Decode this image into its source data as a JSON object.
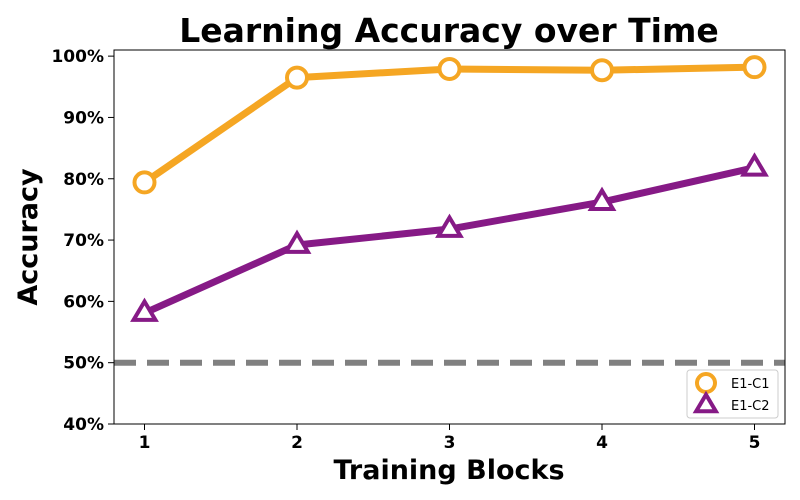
{
  "chart_data": {
    "type": "line",
    "title": "Learning Accuracy over Time",
    "xlabel": "Training Blocks",
    "ylabel": "Accuracy",
    "x": [
      1,
      2,
      3,
      4,
      5
    ],
    "x_tick_labels": [
      "1",
      "2",
      "3",
      "4",
      "5"
    ],
    "xlim": [
      0.8,
      5.2
    ],
    "ylim": [
      0.4,
      1.01
    ],
    "y_ticks": [
      0.4,
      0.5,
      0.6,
      0.7,
      0.8,
      0.9,
      1.0
    ],
    "y_tick_labels": [
      "40%",
      "50%",
      "60%",
      "70%",
      "80%",
      "90%",
      "100%"
    ],
    "grid": false,
    "legend_position": "bottom-right",
    "reference_line": {
      "y": 0.5,
      "style": "dashed",
      "color": "#808080"
    },
    "series": [
      {
        "name": "E1-C1",
        "values": [
          0.794,
          0.965,
          0.979,
          0.977,
          0.982
        ],
        "color": "#F5A623",
        "marker": "circle"
      },
      {
        "name": "E1-C2",
        "values": [
          0.581,
          0.692,
          0.718,
          0.762,
          0.818
        ],
        "color": "#861A86",
        "marker": "triangle"
      }
    ]
  }
}
